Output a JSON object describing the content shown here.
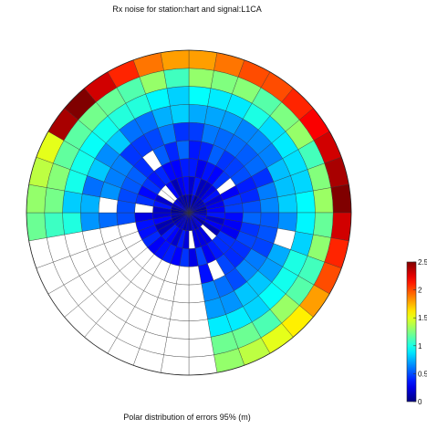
{
  "chart_data": {
    "type": "heatmap",
    "subtype": "polar",
    "title": "Rx noise for station:hart and signal:L1CA",
    "xlabel": "Polar distribution of errors 95% (m)",
    "colorbar": {
      "min": 0,
      "max": 2.5,
      "ticks": [
        "0",
        "0.5",
        "1",
        "1.5",
        "2",
        "2.5"
      ],
      "colormap": "jet"
    },
    "n_sectors": 36,
    "n_rings": 9,
    "ring_values": [
      0.15,
      0.25,
      0.35,
      0.45,
      0.55,
      0.7,
      0.9,
      1.2,
      1.6
    ],
    "outer_ring_values": [
      1.8,
      1.9,
      2.0,
      2.0,
      2.1,
      2.2,
      2.3,
      2.4,
      2.5,
      2.3,
      2.1,
      2.0,
      1.8,
      1.6,
      1.5,
      1.4,
      1.3,
      null,
      null,
      null,
      null,
      null,
      null,
      null,
      null,
      null,
      1.2,
      1.3,
      1.4,
      1.5,
      2.4,
      2.5,
      2.3,
      2.1,
      1.9,
      1.8
    ],
    "empty_bins_note": "white cells",
    "empty_sectors": [
      17,
      18,
      19,
      20,
      21,
      22,
      23,
      24,
      25
    ]
  },
  "colors": {
    "grid": "#333333",
    "empty": "#ffffff"
  }
}
